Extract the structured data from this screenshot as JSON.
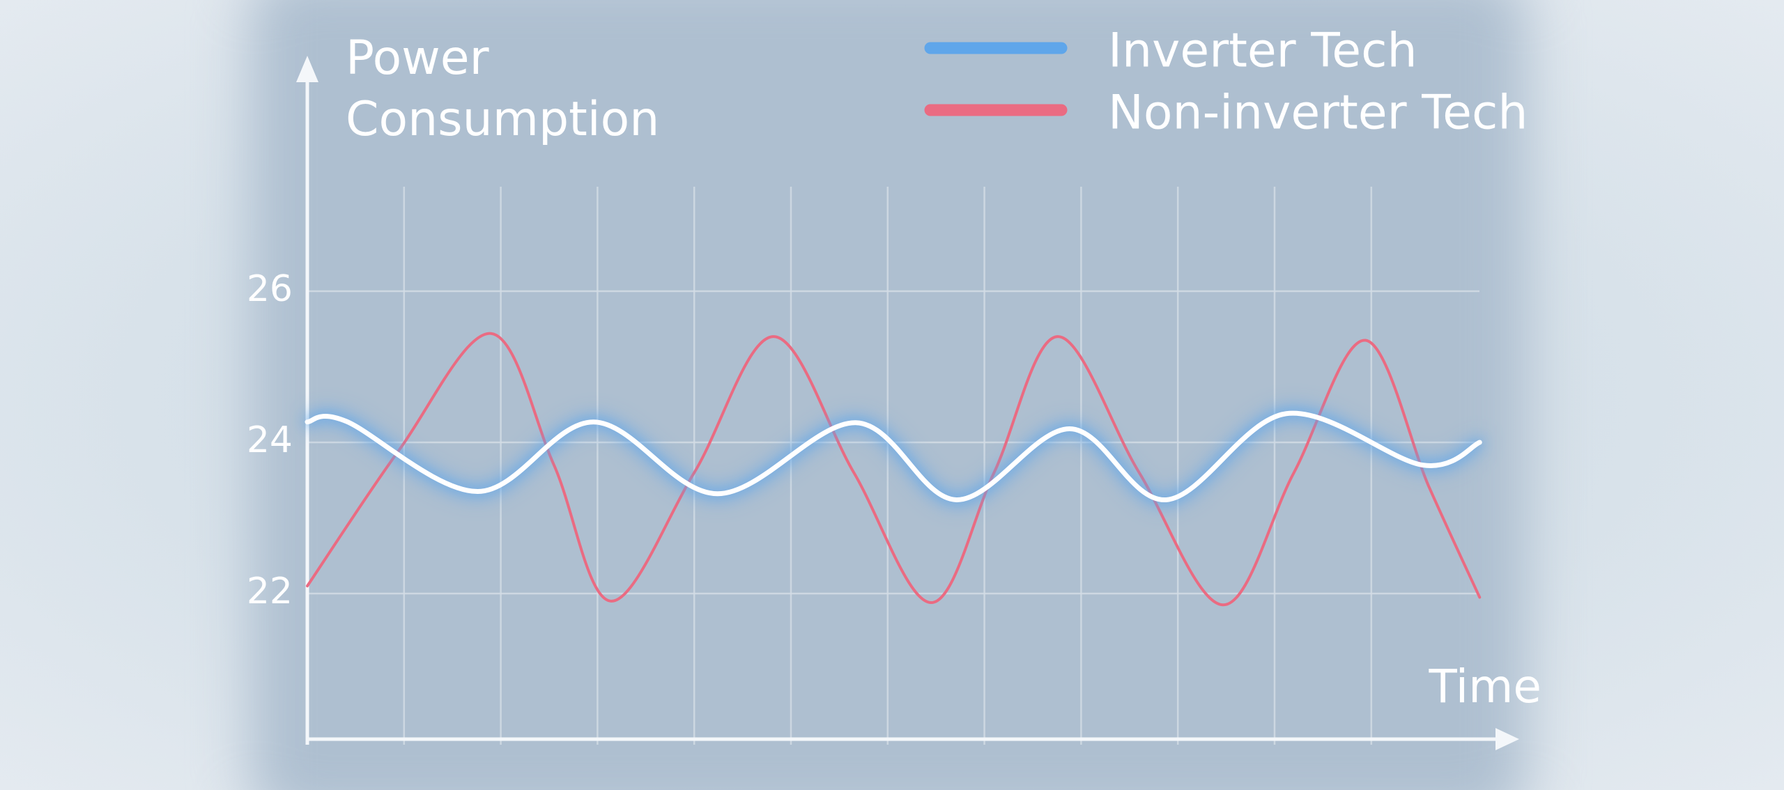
{
  "chart_data": {
    "type": "line",
    "ylabel": "Power Consumption",
    "xlabel": "Time",
    "ylim": [
      20,
      29
    ],
    "yticks": [
      22,
      24,
      26
    ],
    "xlim": [
      0,
      12.5
    ],
    "xticks": [
      1,
      2,
      3,
      4,
      5,
      6,
      7,
      8,
      9,
      10,
      11
    ],
    "show_xtick_labels": false,
    "grid": true,
    "legend": "top-right",
    "series": [
      {
        "name": "Inverter Tech",
        "color": "#5fa6ea",
        "stroke": "#ffffff",
        "glow": true,
        "x": [
          0,
          0.4,
          1.76,
          2.96,
          4.24,
          5.67,
          6.71,
          7.88,
          8.88,
          10.12,
          11.53,
          12.12
        ],
        "values": [
          24.27,
          24.28,
          23.35,
          24.27,
          23.32,
          24.26,
          23.24,
          24.18,
          23.24,
          24.38,
          23.7,
          24.0
        ]
      },
      {
        "name": "Non-inverter Tech",
        "color": "#ea6b82",
        "stroke": "#ea6b82",
        "glow": false,
        "x": [
          0,
          0.95,
          1.9,
          2.55,
          3.14,
          4.0,
          4.82,
          5.65,
          6.45,
          7.1,
          7.76,
          8.6,
          9.47,
          10.2,
          10.94,
          11.6,
          12.12
        ],
        "values": [
          22.1,
          23.9,
          25.44,
          23.7,
          21.9,
          23.6,
          25.4,
          23.6,
          21.88,
          23.6,
          25.4,
          23.6,
          21.85,
          23.6,
          25.35,
          23.4,
          21.95
        ]
      }
    ]
  }
}
